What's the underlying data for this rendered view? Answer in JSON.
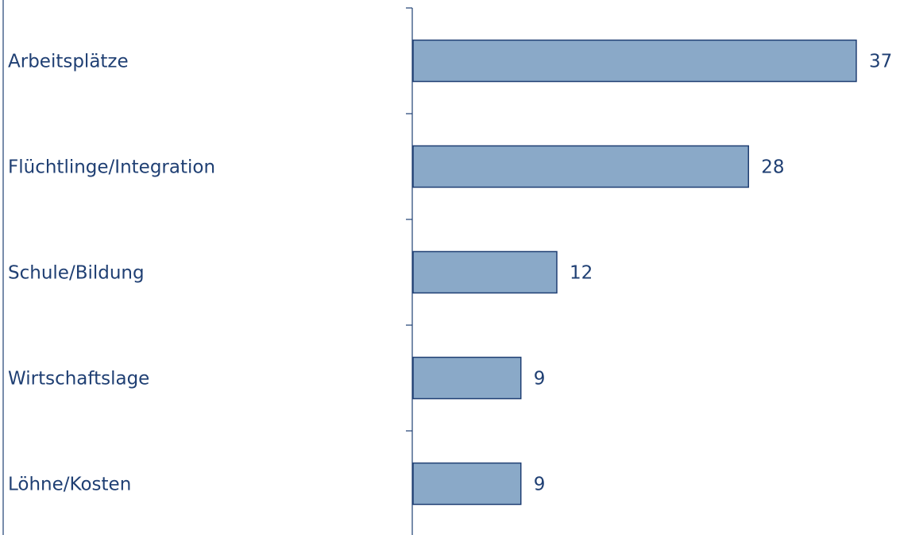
{
  "chart_data": {
    "type": "bar",
    "orientation": "horizontal",
    "categories": [
      "Arbeitsplätze",
      "Flüchtlinge/Integration",
      "Schule/Bildung",
      "Wirtschaftslage",
      "Löhne/Kosten"
    ],
    "values": [
      37,
      28,
      12,
      9,
      9
    ],
    "data_labels": [
      "37",
      "28",
      "12",
      "9",
      "9"
    ],
    "title": "",
    "xlabel": "",
    "ylabel": "",
    "xlim": [
      0,
      40
    ],
    "grid": false,
    "legend": "none",
    "colors": {
      "bar_fill": "#8aa9c8",
      "bar_stroke": "#1f3f73",
      "text": "#1f3f73",
      "axis": "#1f3f73"
    }
  }
}
